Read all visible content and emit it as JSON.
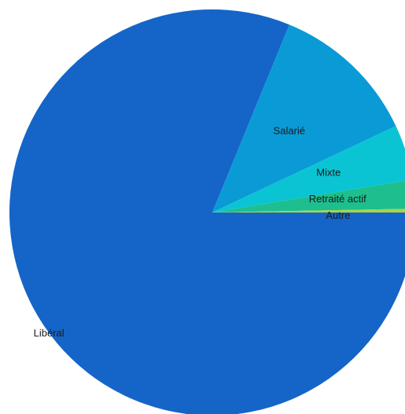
{
  "chart_data": {
    "type": "pie",
    "categories": [
      "Libéral",
      "Salarié",
      "Mixte",
      "Retraité actif",
      "Autre"
    ],
    "values": [
      81.2,
      11.8,
      4.4,
      2.3,
      0.3
    ],
    "colors": [
      "#1565c8",
      "#0a9bd6",
      "#0ac4d4",
      "#1dbf8e",
      "#a9d445"
    ],
    "start": "3 o'clock",
    "direction": "counterclockwise",
    "legend": "none",
    "title": ""
  }
}
